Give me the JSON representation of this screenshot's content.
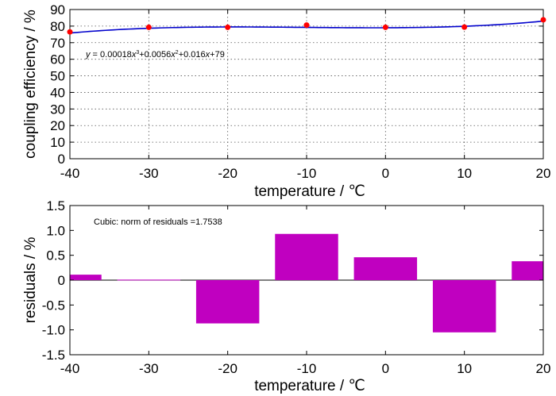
{
  "chart_data": [
    {
      "type": "scatter",
      "xlabel": "temperature / ℃",
      "ylabel": "coupling efficiency / %",
      "xlim": [
        -40,
        20
      ],
      "ylim": [
        0,
        90
      ],
      "xticks": [
        "-40",
        "-30",
        "-20",
        "-10",
        "0",
        "10",
        "20"
      ],
      "yticks": [
        "0",
        "10",
        "20",
        "30",
        "40",
        "50",
        "60",
        "70",
        "80",
        "90"
      ],
      "grid": true,
      "series": [
        {
          "kind": "points",
          "color": "#ff0000",
          "x": [
            -40,
            -30,
            -20,
            -10,
            0,
            10,
            20
          ],
          "y": [
            76.5,
            79.3,
            79.3,
            80.6,
            79.3,
            79.4,
            83.8
          ]
        },
        {
          "kind": "fit-line",
          "color": "#0000cc",
          "coefficients": {
            "a3": 0.00018,
            "a2": 0.0056,
            "a1": 0.016,
            "a0": 79
          }
        }
      ],
      "annotation": {
        "y": "y",
        "eq": " = 0.00018",
        "x3": "x",
        "sup3": "3",
        "t2": "+0.0056",
        "x2": "x",
        "sup2": "2",
        "t1": "+0.016",
        "x1": "x",
        "t0": "+79"
      }
    },
    {
      "type": "bar",
      "xlabel": "temperature / ℃",
      "ylabel": "residuals / %",
      "xlim": [
        -40,
        20
      ],
      "ylim": [
        -1.5,
        1.5
      ],
      "xticks": [
        "-40",
        "-30",
        "-20",
        "-10",
        "0",
        "10",
        "20"
      ],
      "yticks": [
        "1.5",
        "1.0",
        "0.5",
        "0",
        "-0.5",
        "-1.0",
        "-1.5"
      ],
      "grid": false,
      "color": "#c000c0",
      "x": [
        -40,
        -30,
        -20,
        -10,
        0,
        10,
        20
      ],
      "values": [
        0.11,
        0.01,
        -0.87,
        0.93,
        0.46,
        -1.05,
        0.38
      ],
      "annotation": "Cubic: norm of residuals =1.7538"
    }
  ]
}
